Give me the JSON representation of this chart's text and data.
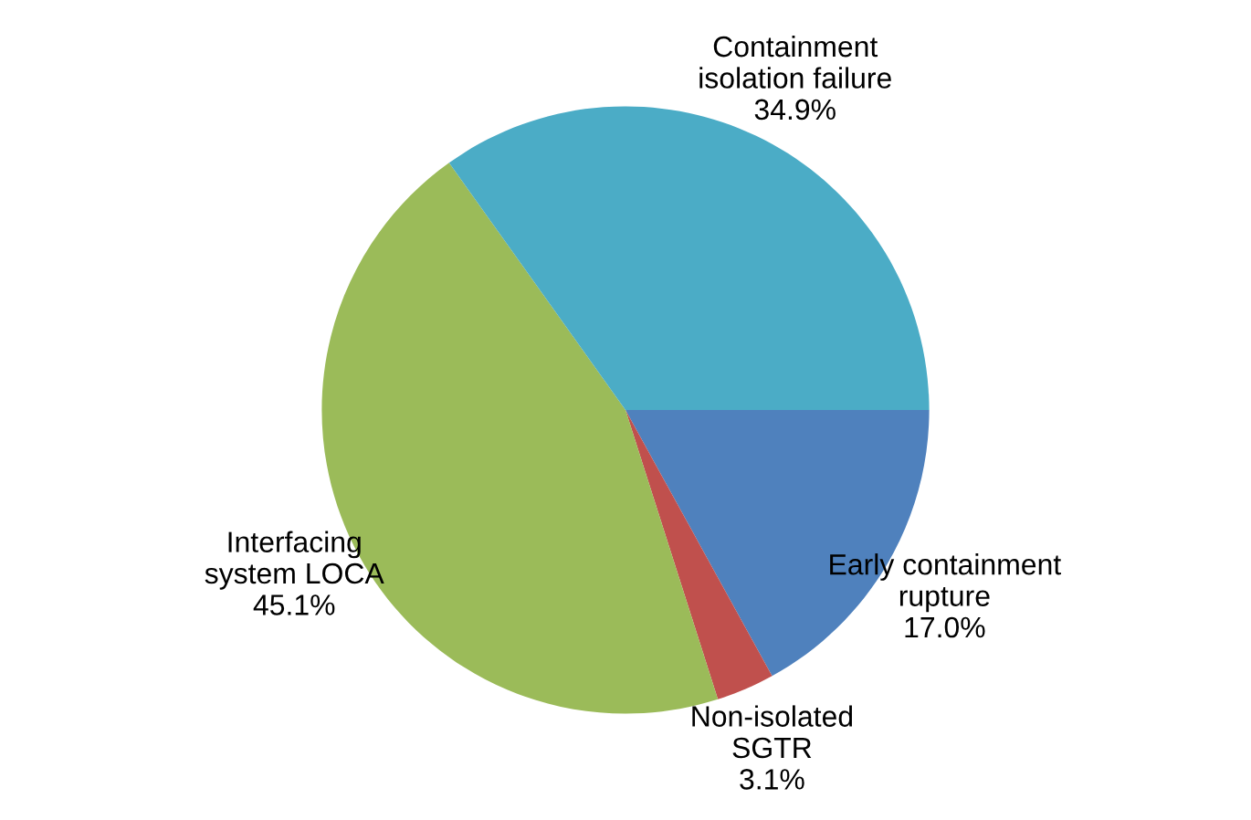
{
  "chart_data": {
    "type": "pie",
    "categories": [
      "Early containment\nrupture",
      "Non-isolated\nSGTR",
      "Interfacing\nsystem LOCA",
      "Containment\nisolation failure"
    ],
    "values": [
      17.0,
      3.1,
      45.1,
      34.9
    ],
    "value_labels": [
      "17.0%",
      "3.1%",
      "45.1%",
      "34.9%"
    ],
    "colors": [
      "#4f81bd",
      "#c0504d",
      "#9bbb59",
      "#4bacc6"
    ]
  }
}
